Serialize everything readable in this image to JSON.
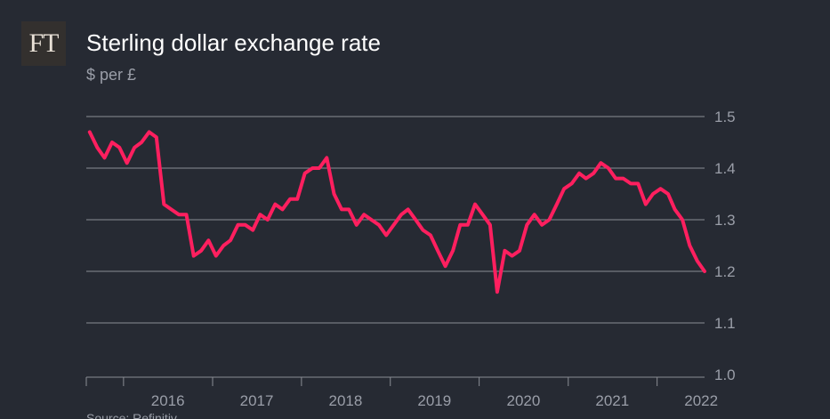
{
  "logo": {
    "text": "FT"
  },
  "colors": {
    "background": "#262a33",
    "line": "#ff1f5f",
    "grid": "#8a8d94",
    "text_muted": "#9a9ea8",
    "title": "#ffffff"
  },
  "chart_data": {
    "type": "line",
    "title": "Sterling dollar exchange rate",
    "subtitle": "$ per £",
    "xlabel": "",
    "ylabel": "",
    "ylim": [
      1.0,
      1.5
    ],
    "xlim": [
      "2015-08-01",
      "2022-07-15"
    ],
    "y_ticks": [
      "1.5",
      "1.4",
      "1.3",
      "1.2",
      "1.1",
      "1.0"
    ],
    "x_ticks": [
      "2016",
      "2017",
      "2018",
      "2019",
      "2020",
      "2021",
      "2022"
    ],
    "grid": true,
    "series": [
      {
        "name": "",
        "x": [
          "2015-08",
          "2015-09",
          "2015-10",
          "2015-11",
          "2015-12",
          "2016-01",
          "2016-02",
          "2016-03",
          "2016-04",
          "2016-05",
          "2016-06",
          "2016-07",
          "2016-08",
          "2016-09",
          "2016-10",
          "2016-11",
          "2016-12",
          "2017-01",
          "2017-02",
          "2017-03",
          "2017-04",
          "2017-05",
          "2017-06",
          "2017-07",
          "2017-08",
          "2017-09",
          "2017-10",
          "2017-11",
          "2017-12",
          "2018-01",
          "2018-02",
          "2018-03",
          "2018-04",
          "2018-05",
          "2018-06",
          "2018-07",
          "2018-08",
          "2018-09",
          "2018-10",
          "2018-11",
          "2018-12",
          "2019-01",
          "2019-02",
          "2019-03",
          "2019-04",
          "2019-05",
          "2019-06",
          "2019-07",
          "2019-08",
          "2019-09",
          "2019-10",
          "2019-11",
          "2019-12",
          "2020-01",
          "2020-02",
          "2020-03",
          "2020-04",
          "2020-05",
          "2020-06",
          "2020-07",
          "2020-08",
          "2020-09",
          "2020-10",
          "2020-11",
          "2020-12",
          "2021-01",
          "2021-02",
          "2021-03",
          "2021-04",
          "2021-05",
          "2021-06",
          "2021-07",
          "2021-08",
          "2021-09",
          "2021-10",
          "2021-11",
          "2021-12",
          "2022-01",
          "2022-02",
          "2022-03",
          "2022-04",
          "2022-05",
          "2022-06",
          "2022-07"
        ],
        "values": [
          1.47,
          1.44,
          1.42,
          1.45,
          1.44,
          1.41,
          1.44,
          1.45,
          1.47,
          1.46,
          1.33,
          1.32,
          1.31,
          1.31,
          1.23,
          1.24,
          1.26,
          1.23,
          1.25,
          1.26,
          1.29,
          1.29,
          1.28,
          1.31,
          1.3,
          1.33,
          1.32,
          1.34,
          1.34,
          1.39,
          1.4,
          1.4,
          1.42,
          1.35,
          1.32,
          1.32,
          1.29,
          1.31,
          1.3,
          1.29,
          1.27,
          1.29,
          1.31,
          1.32,
          1.3,
          1.28,
          1.27,
          1.24,
          1.21,
          1.24,
          1.29,
          1.29,
          1.33,
          1.31,
          1.29,
          1.16,
          1.24,
          1.23,
          1.24,
          1.29,
          1.31,
          1.29,
          1.3,
          1.33,
          1.36,
          1.37,
          1.39,
          1.38,
          1.39,
          1.41,
          1.4,
          1.38,
          1.38,
          1.37,
          1.37,
          1.33,
          1.35,
          1.36,
          1.35,
          1.32,
          1.3,
          1.25,
          1.22,
          1.2
        ]
      }
    ]
  },
  "footer": {
    "source_text": "Source: Refinitiv"
  }
}
